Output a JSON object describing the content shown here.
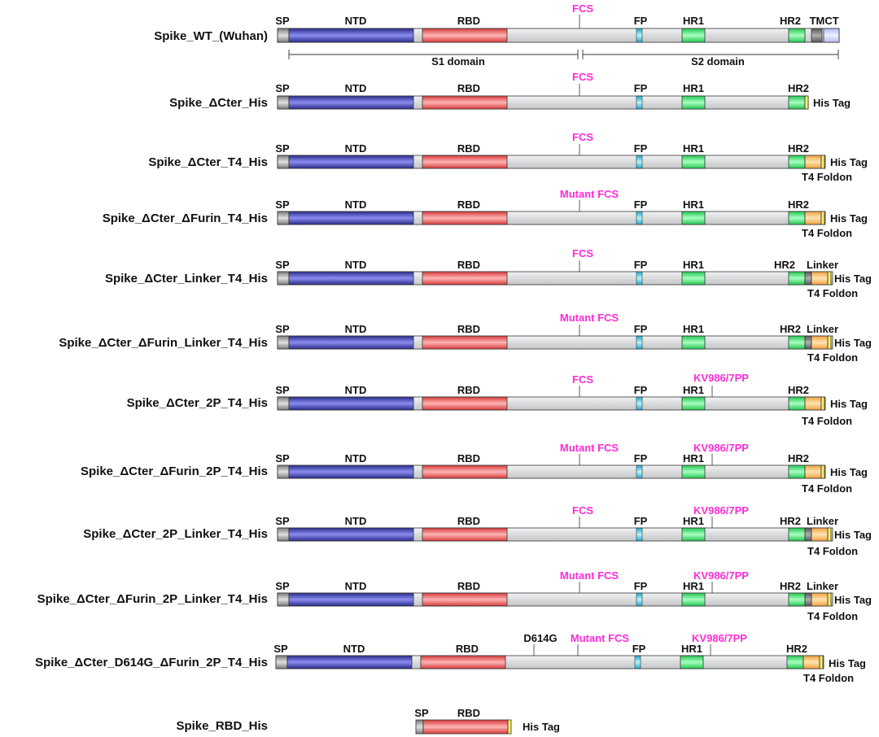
{
  "colors": {
    "backbone": "#d9dbdd",
    "sp": "#a0a0a0",
    "ntd": "#3b3ea6",
    "rbd": "#ee4c4c",
    "fp": "#33ccee",
    "hr": "#33dd66",
    "tm": "#7f7f7f",
    "ct": "#ccd0ff",
    "linker": "#8c8c8c",
    "t4": "#ffc066",
    "his": "#ffee66",
    "accent_text": "#ff2bd6",
    "outline": "#333333"
  },
  "labels": {
    "sp": "SP",
    "ntd": "NTD",
    "rbd": "RBD",
    "fcs": "FCS",
    "mutant_fcs": "Mutant FCS",
    "fp": "FP",
    "hr1": "HR1",
    "hr2": "HR2",
    "tm": "TM",
    "ct": "CT",
    "his_tag": "His Tag",
    "t4_foldon": "T4 Foldon",
    "linker": "Linker",
    "kv": "KV986/7PP",
    "d614g": "D614G",
    "s1_domain": "S1 domain",
    "s2_domain": "S2 domain"
  },
  "constructs": [
    {
      "name": "Spike_WT_(Wuhan)",
      "variant": "wt"
    },
    {
      "name": "Spike_ΔCter_His",
      "variant": "his"
    },
    {
      "name": "Spike_ΔCter_T4_His",
      "variant": "t4"
    },
    {
      "name": "Spike_ΔCter_ΔFurin_T4_His",
      "variant": "t4"
    },
    {
      "name": "Spike_ΔCter_Linker_T4_His",
      "variant": "linker"
    },
    {
      "name": "Spike_ΔCter_ΔFurin_Linker_T4_His",
      "variant": "linker"
    },
    {
      "name": "Spike_ΔCter_2P_T4_His",
      "variant": "t4"
    },
    {
      "name": "Spike_ΔCter_ΔFurin_2P_T4_His",
      "variant": "t4"
    },
    {
      "name": "Spike_ΔCter_2P_Linker_T4_His",
      "variant": "linker"
    },
    {
      "name": "Spike_ΔCter_ΔFurin_2P_Linker_T4_His",
      "variant": "linker"
    },
    {
      "name": "Spike_ΔCter_D614G_ΔFurin_2P_T4_His",
      "variant": "t4"
    },
    {
      "name": "Spike_RBD_His",
      "variant": "rbd"
    }
  ]
}
